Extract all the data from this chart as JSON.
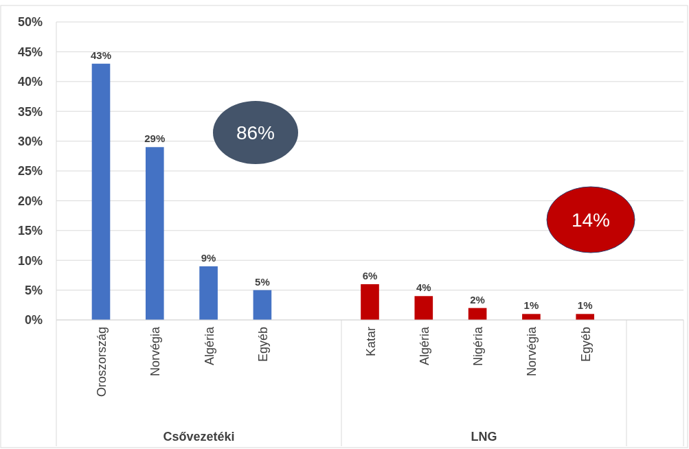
{
  "chart_data": {
    "type": "bar",
    "categories": [
      "Oroszország",
      "Norvégia",
      "Algéria",
      "Egyéb",
      null,
      "Katar",
      "Algéria",
      "Nigéria",
      "Norvégia",
      "Egyéb",
      null
    ],
    "values": [
      43,
      29,
      9,
      5,
      null,
      6,
      4,
      2,
      1,
      1,
      null
    ],
    "colors": [
      "#4472c4",
      "#4472c4",
      "#4472c4",
      "#4472c4",
      null,
      "#c00000",
      "#c00000",
      "#c00000",
      "#c00000",
      "#c00000",
      null
    ],
    "value_labels": [
      "43%",
      "29%",
      "9%",
      "5%",
      null,
      "6%",
      "4%",
      "2%",
      "1%",
      "1%",
      null
    ],
    "ylim": [
      0,
      50
    ],
    "yticks": [
      {
        "value": 0,
        "label": "0%"
      },
      {
        "value": 5,
        "label": "5%"
      },
      {
        "value": 10,
        "label": "10%"
      },
      {
        "value": 15,
        "label": "15%"
      },
      {
        "value": 20,
        "label": "20%"
      },
      {
        "value": 25,
        "label": "25%"
      },
      {
        "value": 30,
        "label": "30%"
      },
      {
        "value": 35,
        "label": "35%"
      },
      {
        "value": 40,
        "label": "40%"
      },
      {
        "value": 45,
        "label": "45%"
      },
      {
        "value": 50,
        "label": "50%"
      }
    ],
    "grid": "y",
    "annotations": [
      "Csővezetéki",
      "LNG",
      "86%",
      "14%"
    ]
  }
}
